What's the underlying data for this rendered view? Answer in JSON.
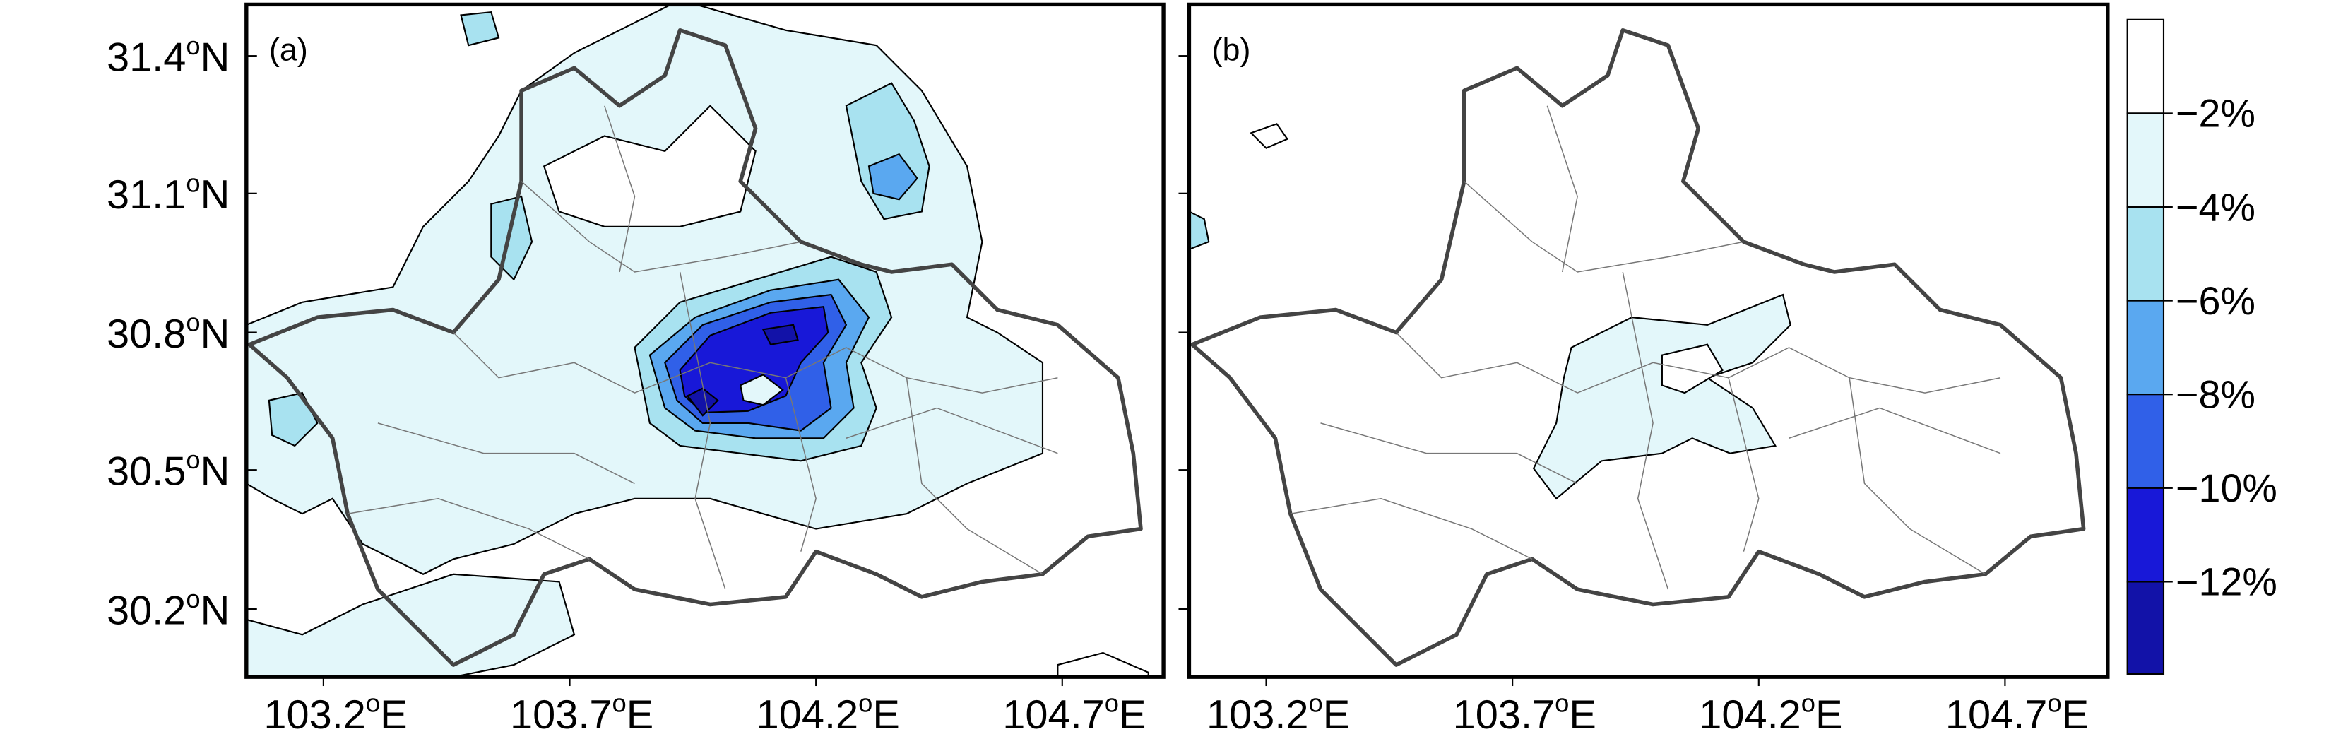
{
  "panels": [
    {
      "label": "(a)"
    },
    {
      "label": "(b)"
    }
  ],
  "lat_ticks": [
    {
      "num": "31.4",
      "sup": "o",
      "dir": "N"
    },
    {
      "num": "31.1",
      "sup": "o",
      "dir": "N"
    },
    {
      "num": "30.8",
      "sup": "o",
      "dir": "N"
    },
    {
      "num": "30.5",
      "sup": "o",
      "dir": "N"
    },
    {
      "num": "30.2",
      "sup": "o",
      "dir": "N"
    }
  ],
  "lon_ticks": [
    {
      "num": "103.2",
      "sup": "o",
      "dir": "E"
    },
    {
      "num": "103.7",
      "sup": "o",
      "dir": "E"
    },
    {
      "num": "104.2",
      "sup": "o",
      "dir": "E"
    },
    {
      "num": "104.7",
      "sup": "o",
      "dir": "E"
    }
  ],
  "colorbar": {
    "labels": [
      "−2%",
      "−4%",
      "−6%",
      "−8%",
      "−10%",
      "−12%"
    ]
  }
}
